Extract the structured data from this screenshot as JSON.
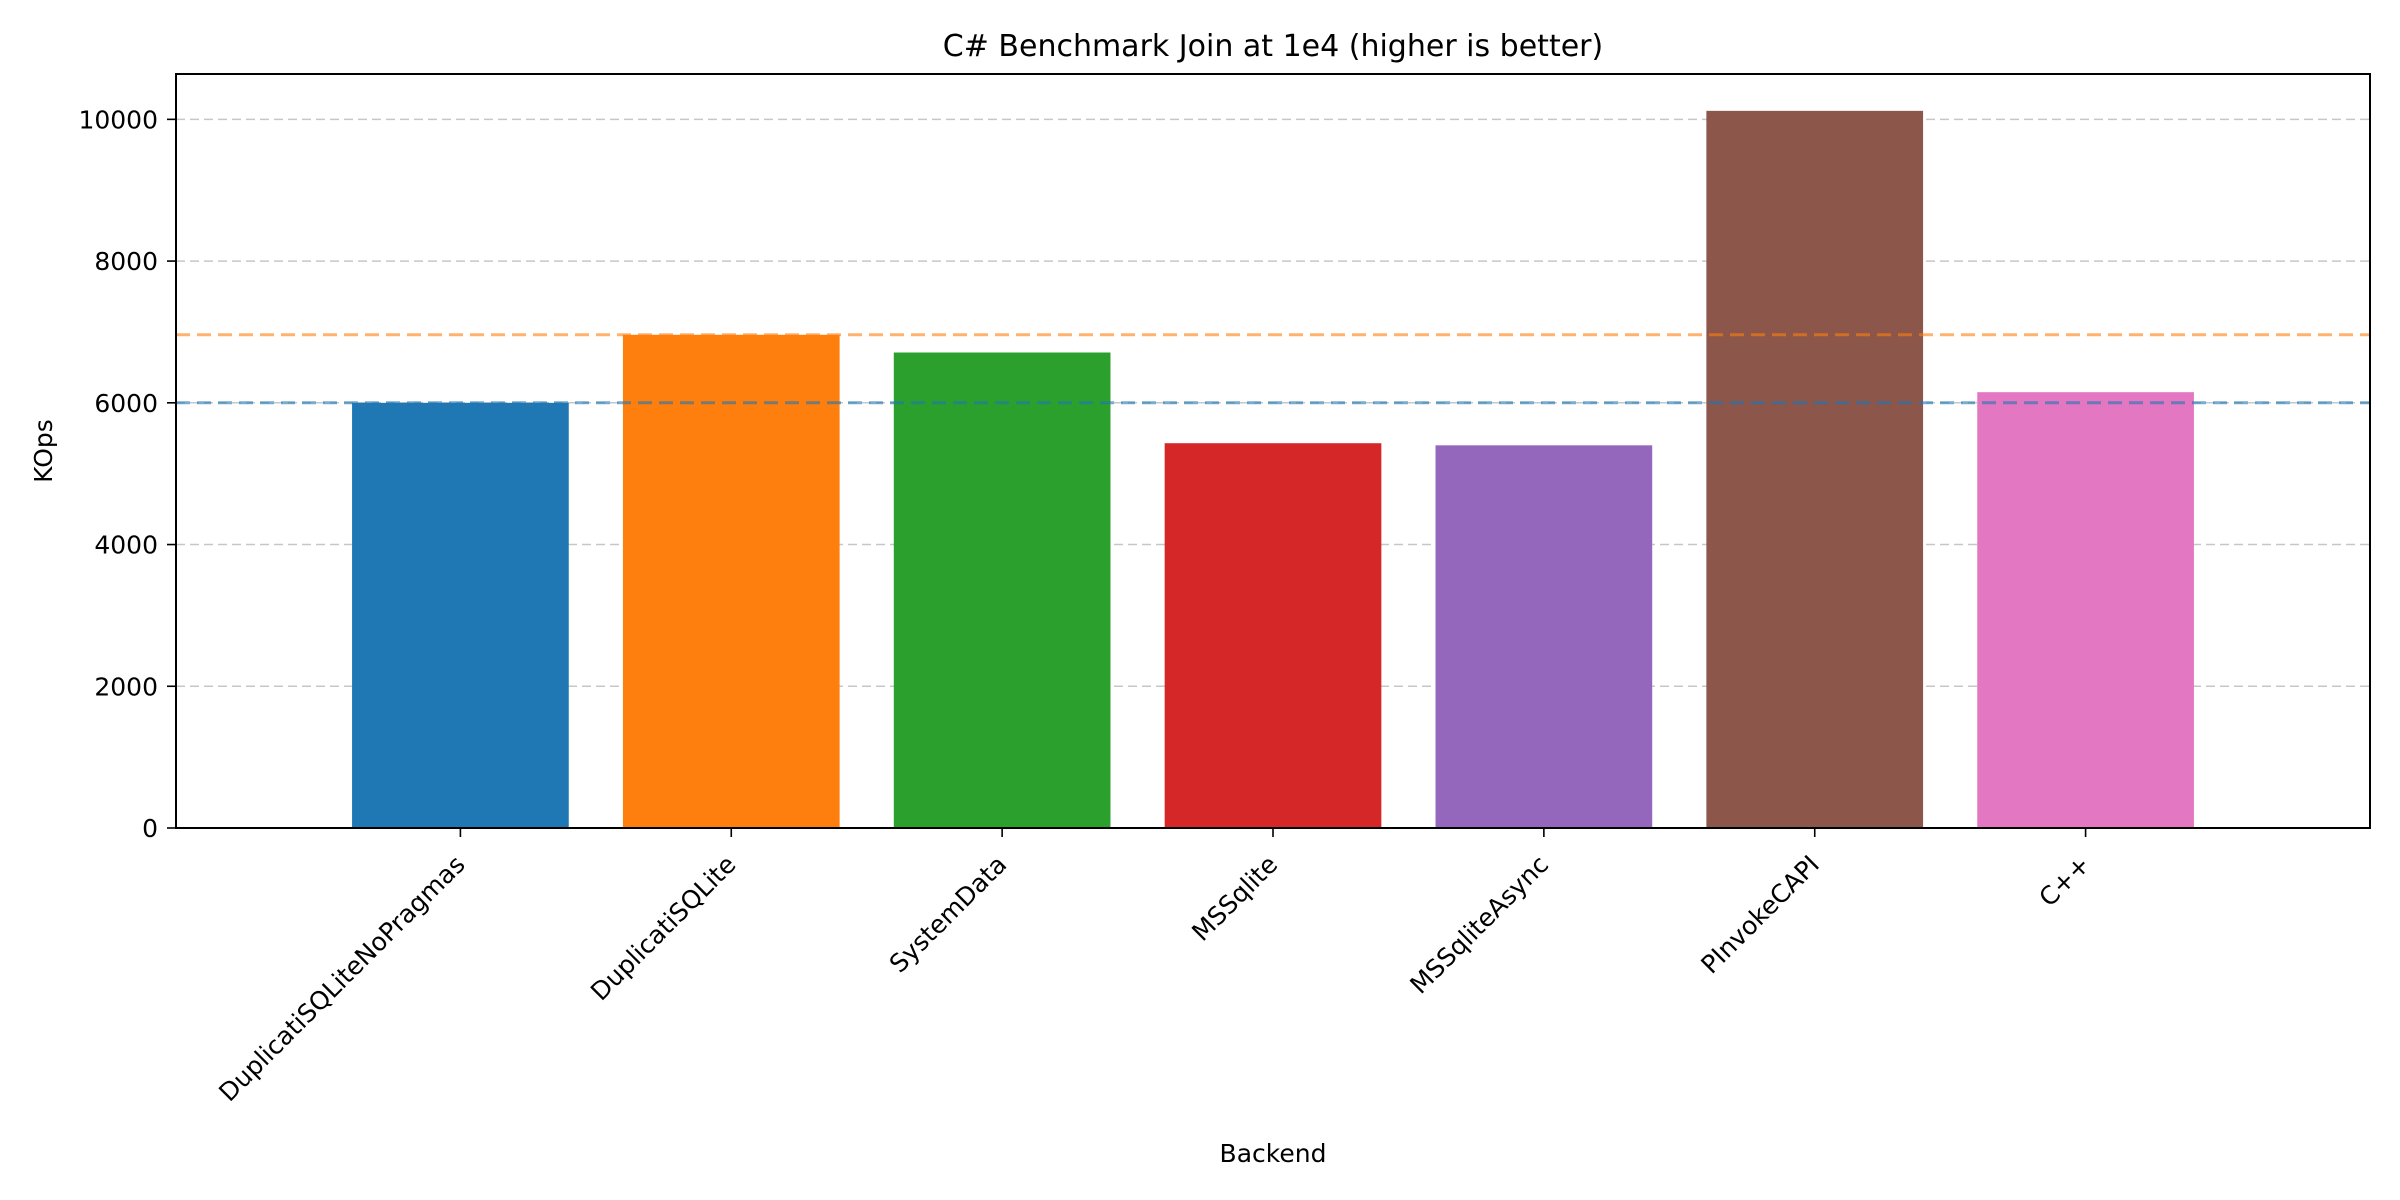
{
  "chart_data": {
    "type": "bar",
    "title": "C# Benchmark Join at 1e4 (higher is better)",
    "xlabel": "Backend",
    "ylabel": "KOps",
    "categories": [
      "DuplicatiSQLiteNoPragmas",
      "DuplicatiSQLite",
      "SystemData",
      "MSSqlite",
      "MSSqliteAsync",
      "PInvokeCAPI",
      "C++"
    ],
    "values": [
      6000,
      6960,
      6710,
      5430,
      5400,
      10120,
      6150
    ],
    "colors": [
      "#1f77b4",
      "#ff7f0e",
      "#2ca02c",
      "#d62728",
      "#9467bd",
      "#8c564b",
      "#e377c2"
    ],
    "reference_lines": [
      {
        "value": 6000,
        "color": "#1f77b4",
        "style": "dashed"
      },
      {
        "value": 6960,
        "color": "#ff7f0e",
        "style": "dashed"
      }
    ],
    "ylim": [
      0,
      10640
    ],
    "yticks": [
      0,
      2000,
      4000,
      6000,
      8000,
      10000
    ],
    "grid": {
      "y": true,
      "style": "dashed"
    }
  }
}
